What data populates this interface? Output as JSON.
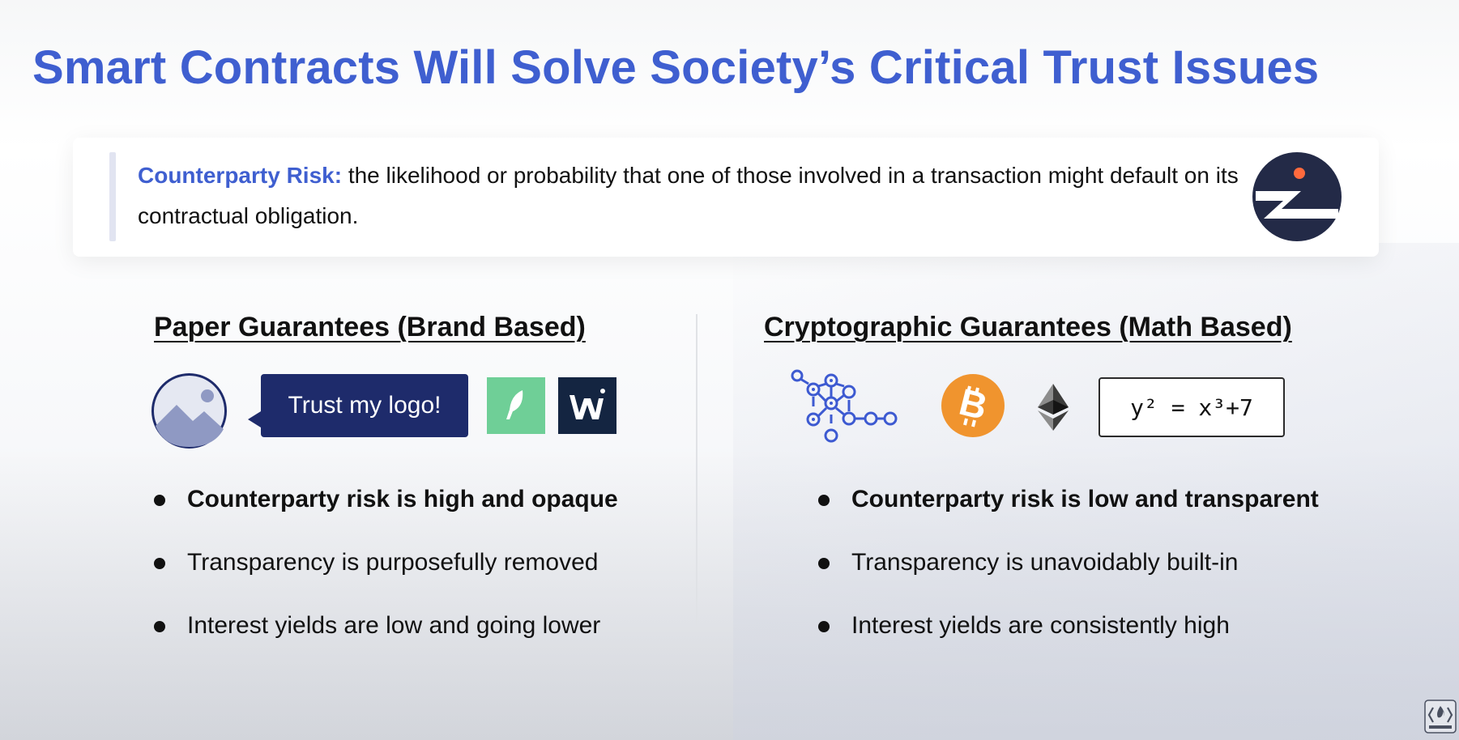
{
  "title": "Smart Contracts Will Solve Society’s Critical Trust Issues",
  "definition": {
    "term": "Counterparty Risk:",
    "text": " the likelihood or probability that one of those involved in a transaction might default on its contractual obligation."
  },
  "left_column": {
    "heading": "Paper Guarantees (Brand Based)",
    "icons": [
      "image-placeholder-icon",
      "robinhood-feather-icon",
      "wealthsimple-w-icon"
    ],
    "bubble_text": "Trust my logo!",
    "bullets": [
      "Counterparty risk is high and opaque",
      "Transparency is purposefully removed",
      "Interest yields are low and going lower"
    ]
  },
  "right_column": {
    "heading": "Cryptographic Guarantees (Math Based)",
    "icons": [
      "network-nodes-icon",
      "bitcoin-icon",
      "ethereum-icon"
    ],
    "equation": "y² = x³+7",
    "bullets": [
      "Counterparty risk is low and transparent",
      "Transparency is unavoidably built-in",
      "Interest yields are consistently high"
    ]
  },
  "colors": {
    "title_blue": "#3f5fd0",
    "navy": "#1e2b6b",
    "robinhood_green": "#6fcf97",
    "wealthsimple_navy": "#142541",
    "bitcoin_orange": "#f0942e",
    "network_blue": "#3d5ad1"
  }
}
